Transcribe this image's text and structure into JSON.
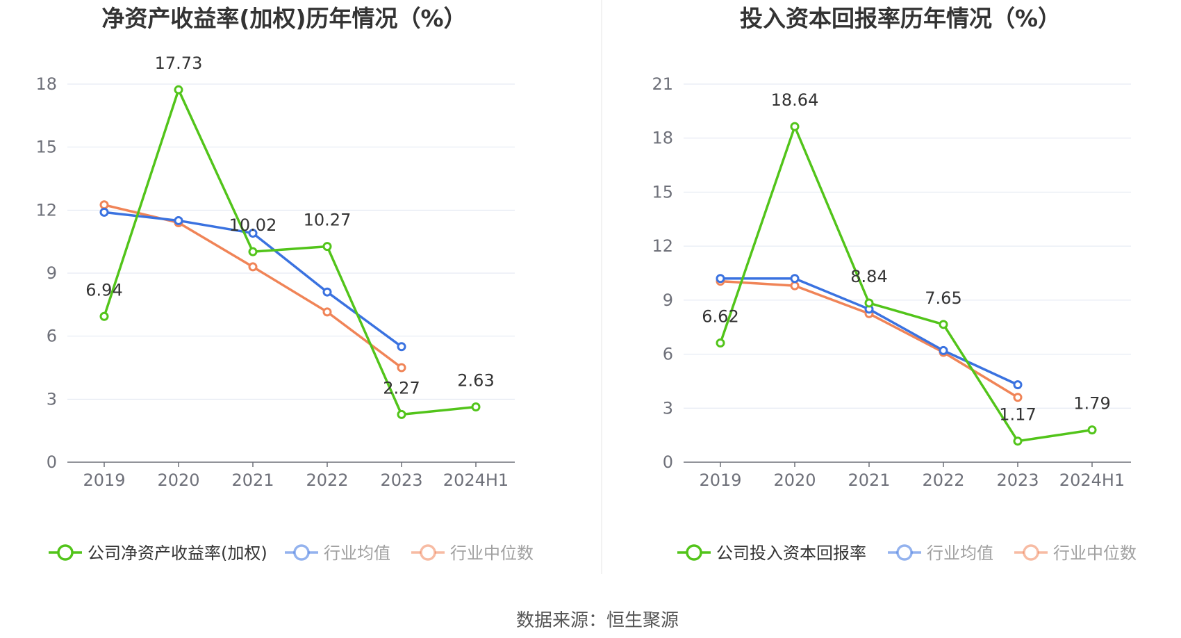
{
  "chart_data": [
    {
      "type": "line",
      "title": "净资产收益率(加权)历年情况（%）",
      "categories": [
        "2019",
        "2020",
        "2021",
        "2022",
        "2023",
        "2024H1"
      ],
      "ylim": [
        0,
        18
      ],
      "yticks": [
        0,
        3,
        6,
        9,
        12,
        15,
        18
      ],
      "grid": true,
      "legend_position": "bottom",
      "series": [
        {
          "name": "公司净资产收益率(加权)",
          "color": "#52c41a",
          "values": [
            6.94,
            17.73,
            10.02,
            10.27,
            2.27,
            2.63
          ],
          "labels": [
            "6.94",
            "17.73",
            "10.02",
            "10.27",
            "2.27",
            "2.63"
          ]
        },
        {
          "name": "行业均值",
          "color": "#3a72e0",
          "values": [
            11.9,
            11.5,
            10.9,
            8.1,
            5.5,
            null
          ]
        },
        {
          "name": "行业中位数",
          "color": "#f08457",
          "values": [
            12.25,
            11.4,
            9.3,
            7.15,
            4.5,
            null
          ]
        }
      ]
    },
    {
      "type": "line",
      "title": "投入资本回报率历年情况（%）",
      "categories": [
        "2019",
        "2020",
        "2021",
        "2022",
        "2023",
        "2024H1"
      ],
      "ylim": [
        0,
        21
      ],
      "yticks": [
        0,
        3,
        6,
        9,
        12,
        15,
        18,
        21
      ],
      "grid": true,
      "legend_position": "bottom",
      "series": [
        {
          "name": "公司投入资本回报率",
          "color": "#52c41a",
          "values": [
            6.62,
            18.64,
            8.84,
            7.65,
            1.17,
            1.79
          ],
          "labels": [
            "6.62",
            "18.64",
            "8.84",
            "7.65",
            "1.17",
            "1.79"
          ]
        },
        {
          "name": "行业均值",
          "color": "#3a72e0",
          "values": [
            10.2,
            10.2,
            8.5,
            6.2,
            4.3,
            null
          ]
        },
        {
          "name": "行业中位数",
          "color": "#f08457",
          "values": [
            10.05,
            9.8,
            8.25,
            6.1,
            3.6,
            null
          ]
        }
      ]
    }
  ],
  "source_text": "数据来源：恒生聚源"
}
